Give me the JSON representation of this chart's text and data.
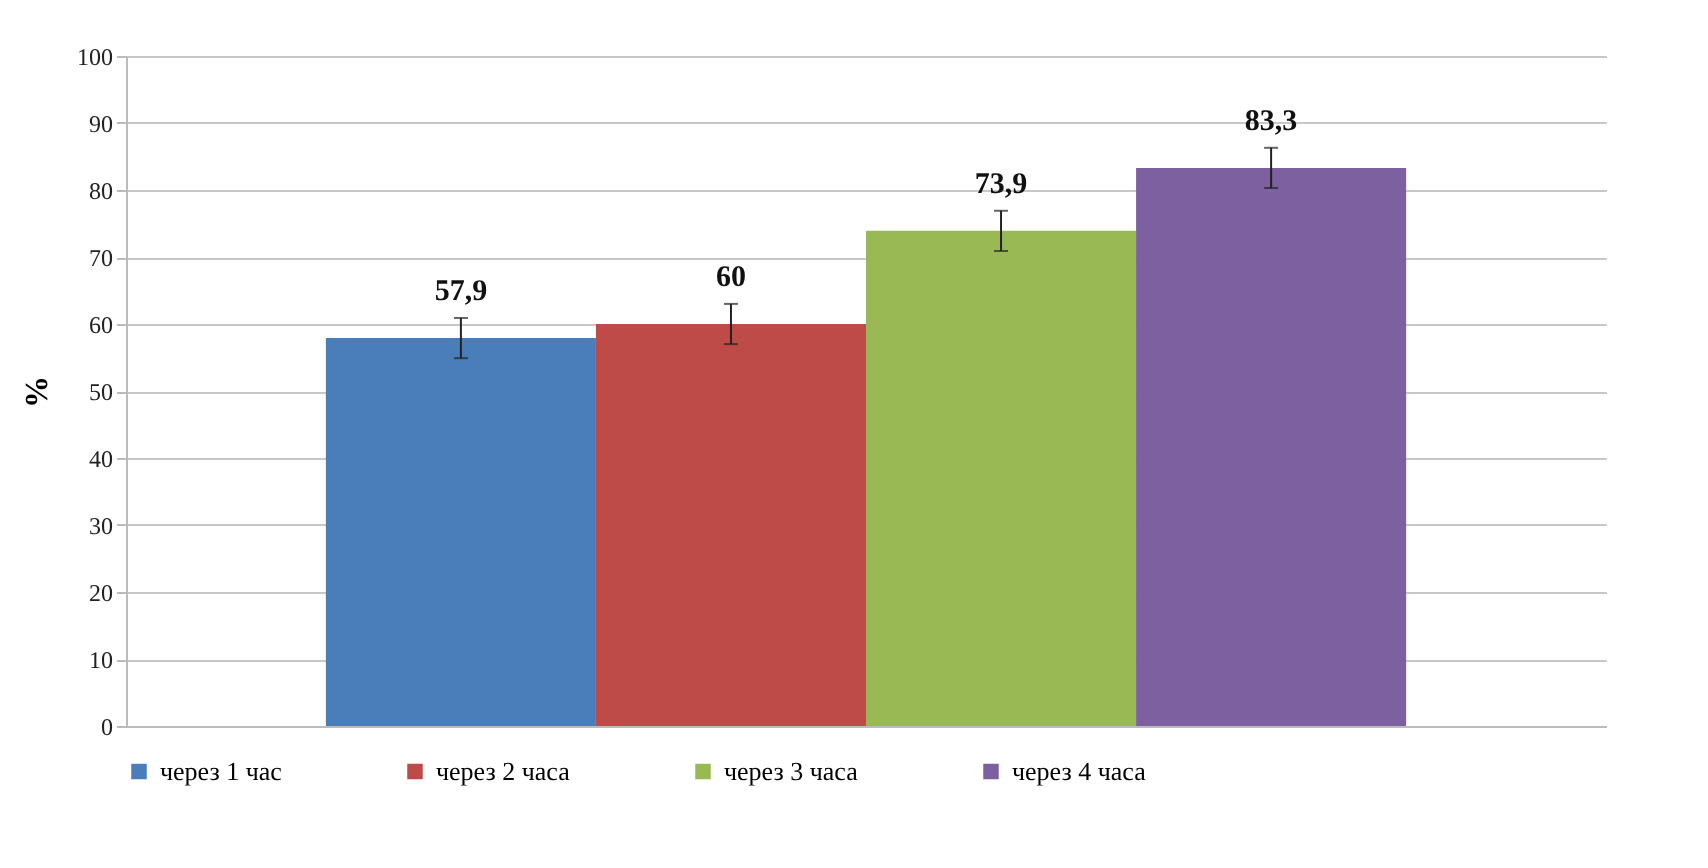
{
  "chart_data": {
    "type": "bar",
    "ylabel": "%",
    "categories": [
      null
    ],
    "series": [
      {
        "name": "через 1 час",
        "color": "#4a7ebb",
        "values": [
          57.9
        ],
        "errors": [
          3
        ],
        "value_labels": [
          "57,9"
        ]
      },
      {
        "name": "через 2 часа",
        "color": "#be4b48",
        "values": [
          60
        ],
        "errors": [
          3
        ],
        "value_labels": [
          "60"
        ]
      },
      {
        "name": "через 3 часа",
        "color": "#98b954",
        "values": [
          73.9
        ],
        "errors": [
          3
        ],
        "value_labels": [
          "73,9"
        ]
      },
      {
        "name": "через 4 часа",
        "color": "#7d60a0",
        "values": [
          83.3
        ],
        "errors": [
          3
        ],
        "value_labels": [
          "83,3"
        ]
      }
    ],
    "ylim": [
      0,
      100
    ],
    "yticks": [
      0,
      10,
      20,
      30,
      40,
      50,
      60,
      70,
      80,
      90,
      100
    ],
    "grid": "y",
    "legend": "bottom"
  }
}
